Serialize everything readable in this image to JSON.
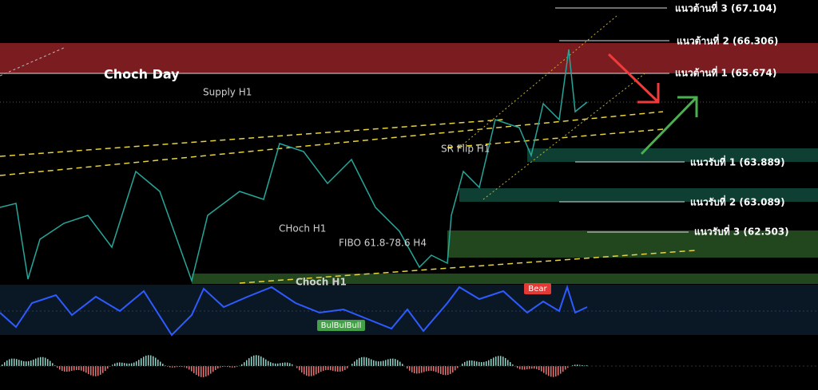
{
  "levels": {
    "resistance": [
      "แนวต้านที่ 3 (67.104)",
      "แนวต้านที่ 2 (66.306)",
      "แนวต้านที่ 1 (65.674)"
    ],
    "support": [
      "แนวรับที่ 1 (63.889)",
      "แนวรับที่ 2 (63.089)",
      "แนวรับที่ 3 (62.503)"
    ]
  },
  "annotations": {
    "choch_day": "Choch Day",
    "supply": "Supply H1",
    "sr_flip": "SR Flip H1",
    "choch_h1": "CHoch H1",
    "fibo": "FIBO 61.8-78.6 H4",
    "choch_h1_low": "Choch H1",
    "bear": "Bear",
    "bull": "BulBulBull"
  }
}
